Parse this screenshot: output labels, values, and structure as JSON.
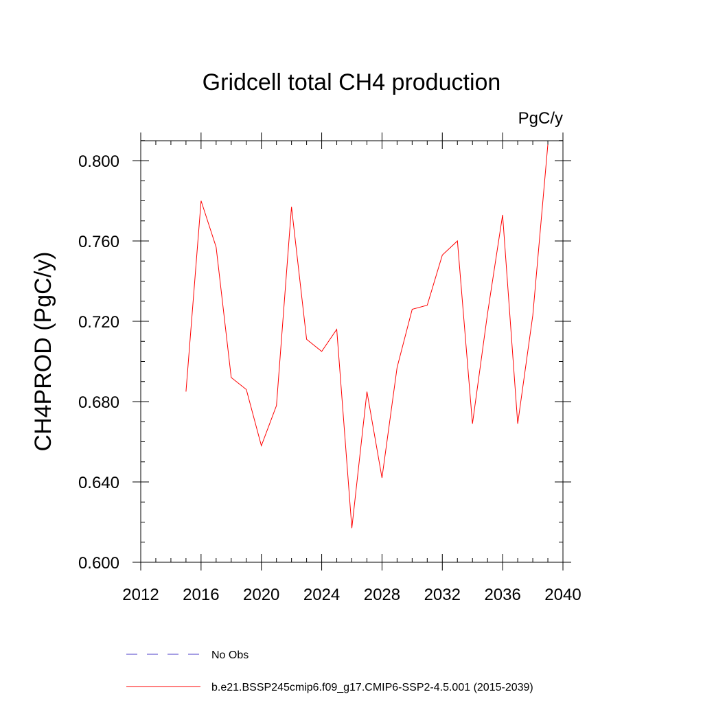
{
  "chart_data": {
    "type": "line",
    "title": "Gridcell total CH4 production",
    "units_label": "PgC/y",
    "xlabel": "",
    "ylabel": "CH4PROD  (PgC/y)",
    "xlim": [
      2012,
      2040
    ],
    "ylim": [
      0.6,
      0.81
    ],
    "x_ticks": [
      2012,
      2016,
      2020,
      2024,
      2028,
      2032,
      2036,
      2040
    ],
    "x_tick_labels": [
      "2012",
      "2016",
      "2020",
      "2024",
      "2028",
      "2032",
      "2036",
      "2040"
    ],
    "y_ticks": [
      0.6,
      0.64,
      0.68,
      0.72,
      0.76,
      0.8
    ],
    "y_tick_labels": [
      "0.600",
      "0.640",
      "0.680",
      "0.720",
      "0.760",
      "0.800"
    ],
    "grid": false,
    "legend_position": "bottom",
    "series": [
      {
        "name": "b.e21.BSSP245cmip6.f09_g17.CMIP6-SSP2-4.5.001 (2015-2039)",
        "color": "#ff0000",
        "style": "solid",
        "x": [
          2015,
          2016,
          2017,
          2018,
          2019,
          2020,
          2021,
          2022,
          2023,
          2024,
          2025,
          2026,
          2027,
          2028,
          2029,
          2030,
          2031,
          2032,
          2033,
          2034,
          2035,
          2036,
          2037,
          2038,
          2039
        ],
        "y": [
          0.685,
          0.78,
          0.757,
          0.692,
          0.686,
          0.658,
          0.678,
          0.777,
          0.711,
          0.705,
          0.716,
          0.617,
          0.685,
          0.642,
          0.697,
          0.726,
          0.728,
          0.753,
          0.76,
          0.669,
          0.724,
          0.773,
          0.669,
          0.723,
          0.808
        ]
      }
    ],
    "legend": [
      {
        "label": "No Obs",
        "color": "#4b3cc8",
        "style": "dashed"
      },
      {
        "label": "b.e21.BSSP245cmip6.f09_g17.CMIP6-SSP2-4.5.001 (2015-2039)",
        "color": "#ff0000",
        "style": "solid"
      }
    ]
  }
}
